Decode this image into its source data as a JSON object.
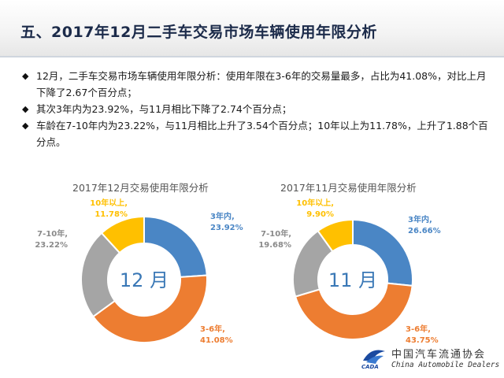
{
  "slide": {
    "title": "五、2017年12月二手车交易市场车辆使用年限分析",
    "bullets": [
      {
        "marker": "◆",
        "text": "12月，二手车交易市场车辆使用年限分析：使用年限在3-6年的交易量最多，占比为41.08%，对比上月下降了2.67个百分点；"
      },
      {
        "marker": "◆",
        "text": "其次3年内为23.92%，与11月相比下降了2.74个百分点；"
      },
      {
        "marker": "◆",
        "text": "车龄在7-10年内为23.22%，与11月相比上升了3.54个百分点；10年以上为11.78%，上升了1.88个百分点。"
      }
    ]
  },
  "logo": {
    "cn": "中国汽车流通协会",
    "en": "China Automobile Dealers",
    "mark": "CADA"
  },
  "colors": {
    "blue": "#4a86c5",
    "orange": "#ed7d31",
    "gray": "#a5a5a5",
    "yellow": "#ffc000",
    "center_text": "#3a78b6"
  },
  "chart_data": [
    {
      "type": "pie",
      "title": "2017年12月交易使用年限分析",
      "center_label": "12 月",
      "categories": [
        "3年内",
        "3-6年",
        "7-10年",
        "10年以上"
      ],
      "values": [
        23.92,
        41.08,
        23.22,
        11.78
      ],
      "value_labels": [
        "23.92%",
        "41.08%",
        "23.22%",
        "11.78%"
      ],
      "legend": "none"
    },
    {
      "type": "pie",
      "title": "2017年11月交易使用年限分析",
      "center_label": "11 月",
      "categories": [
        "3年内",
        "3-6年",
        "7-10年",
        "10年以上"
      ],
      "values": [
        26.66,
        43.75,
        19.68,
        9.9
      ],
      "value_labels": [
        "26.66%",
        "43.75%",
        "19.68%",
        "9.90%"
      ],
      "legend": "none"
    }
  ]
}
